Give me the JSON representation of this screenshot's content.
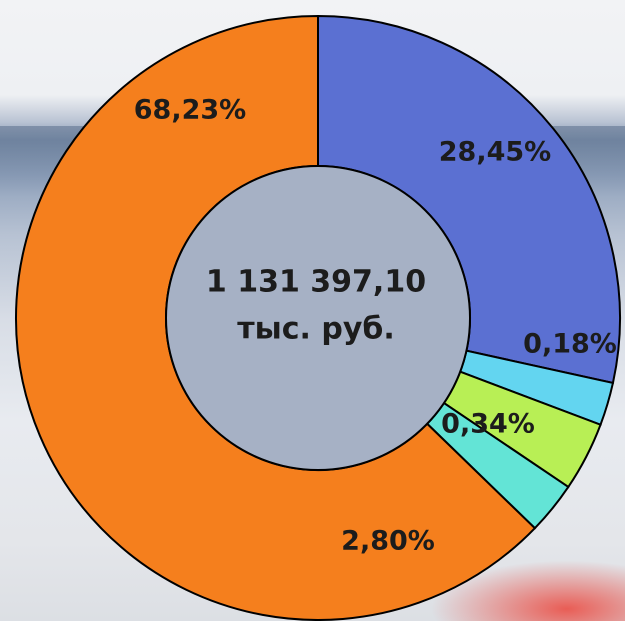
{
  "chart_data": {
    "type": "pie",
    "style": "donut",
    "title": "",
    "center_label": {
      "line1": "1 131 397,10",
      "line2": "тыс. руб."
    },
    "slices": [
      {
        "value": 28.45,
        "label": "28,45%",
        "color": "#5b70d2"
      },
      {
        "value": 0.18,
        "label": "0,18%",
        "color": "#63d5f0"
      },
      {
        "value": 0.34,
        "label": "0,34%",
        "color": "#b8ef55"
      },
      {
        "value": 2.8,
        "label": "2,80%",
        "color": "#63e4d6"
      },
      {
        "value": 68.23,
        "label": "68,23%",
        "color": "#f57f1d"
      }
    ],
    "hole_color": "#a6b1c5"
  }
}
